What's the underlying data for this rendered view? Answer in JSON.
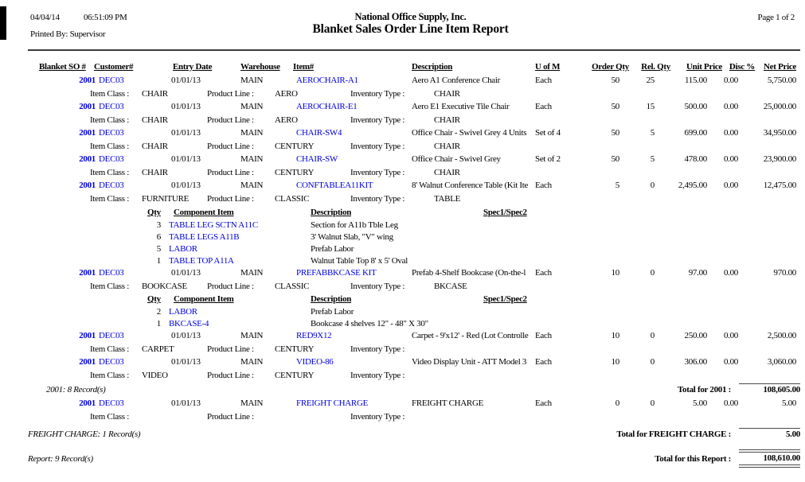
{
  "colors": {
    "link_blue": "#0000dd",
    "text": "#000000"
  },
  "header": {
    "date": "04/04/14",
    "time": "06:51:09 PM",
    "printed_by": "Printed By: Supervisor",
    "company": "National Office Supply, Inc.",
    "title": "Blanket Sales Order Line Item Report",
    "page": "Page 1 of 2"
  },
  "table": {
    "headers": {
      "blanket_so": "Blanket SO #",
      "customer": "Customer#",
      "entry_date": "Entry Date",
      "warehouse": "Warehouse",
      "item": "Item#",
      "description": "Description",
      "uofm": "U of M",
      "order_qty": "Order Qty",
      "rel_qty": "Rel. Qty",
      "unit_price": "Unit Price",
      "disc": "Disc %",
      "net_price": "Net Price"
    },
    "sub_headers": {
      "qty": "Qty",
      "component_item": "Component Item",
      "description": "Description",
      "spec": "Spec1/Spec2"
    },
    "class_labels": {
      "item_class": "Item Class :",
      "product_line": "Product Line :",
      "inventory_type": "Inventory Type :"
    },
    "rows": [
      {
        "type": "item",
        "so": "2001",
        "customer": "DEC03",
        "entry_date": "01/01/13",
        "warehouse": "MAIN",
        "item": "AEROCHAIR-A1",
        "description": "Aero A1 Conference Chair",
        "uofm": "Each",
        "order_qty": "50",
        "rel_qty": "25",
        "unit_price": "115.00",
        "disc": "0.00",
        "net_price": "5,750.00"
      },
      {
        "type": "class",
        "item_class": "CHAIR",
        "product_line": "AERO",
        "inventory_type": "CHAIR"
      },
      {
        "type": "item",
        "so": "2001",
        "customer": "DEC03",
        "entry_date": "01/01/13",
        "warehouse": "MAIN",
        "item": "AEROCHAIR-E1",
        "description": "Aero E1 Executive Tile Chair",
        "uofm": "Each",
        "order_qty": "50",
        "rel_qty": "15",
        "unit_price": "500.00",
        "disc": "0.00",
        "net_price": "25,000.00"
      },
      {
        "type": "class",
        "item_class": "CHAIR",
        "product_line": "AERO",
        "inventory_type": "CHAIR"
      },
      {
        "type": "item",
        "so": "2001",
        "customer": "DEC03",
        "entry_date": "01/01/13",
        "warehouse": "MAIN",
        "item": "CHAIR-SW4",
        "description": "Office Chair - Swivel Grey 4 Units",
        "uofm": "Set of 4",
        "order_qty": "50",
        "rel_qty": "5",
        "unit_price": "699.00",
        "disc": "0.00",
        "net_price": "34,950.00"
      },
      {
        "type": "class",
        "item_class": "CHAIR",
        "product_line": "CENTURY",
        "inventory_type": "CHAIR"
      },
      {
        "type": "item",
        "so": "2001",
        "customer": "DEC03",
        "entry_date": "01/01/13",
        "warehouse": "MAIN",
        "item": "CHAIR-SW",
        "description": "Office Chair - Swivel Grey",
        "uofm": "Set of 2",
        "order_qty": "50",
        "rel_qty": "5",
        "unit_price": "478.00",
        "disc": "0.00",
        "net_price": "23,900.00"
      },
      {
        "type": "class",
        "item_class": "CHAIR",
        "product_line": "CENTURY",
        "inventory_type": "CHAIR"
      },
      {
        "type": "item",
        "so": "2001",
        "customer": "DEC03",
        "entry_date": "01/01/13",
        "warehouse": "MAIN",
        "item": "CONFTABLEA11KIT",
        "description": "8' Walnut Conference Table (Kit Ite",
        "uofm": "Each",
        "order_qty": "5",
        "rel_qty": "0",
        "unit_price": "2,495.00",
        "disc": "0.00",
        "net_price": "12,475.00"
      },
      {
        "type": "class",
        "item_class": "FURNITURE",
        "product_line": "CLASSIC",
        "inventory_type": "TABLE"
      },
      {
        "type": "comp-header"
      },
      {
        "type": "comp",
        "qty": "3",
        "item": "TABLE LEG SCTN A11C",
        "description": "Section for A11b Tble Leg"
      },
      {
        "type": "comp",
        "qty": "6",
        "item": "TABLE LEGS A11B",
        "description": "3' Walnut Slab, \"V\" wing"
      },
      {
        "type": "comp",
        "qty": "5",
        "item": "LABOR",
        "description": "Prefab Labor"
      },
      {
        "type": "comp",
        "qty": "1",
        "item": "TABLE TOP A11A",
        "description": "Walnut Table Top 8' x 5' Oval"
      },
      {
        "type": "item",
        "so": "2001",
        "customer": "DEC03",
        "entry_date": "01/01/13",
        "warehouse": "MAIN",
        "item": "PREFABBKCASE KIT",
        "description": "Prefab 4-Shelf Bookcase (On-the-l",
        "uofm": "Each",
        "order_qty": "10",
        "rel_qty": "0",
        "unit_price": "97.00",
        "disc": "0.00",
        "net_price": "970.00"
      },
      {
        "type": "class",
        "item_class": "BOOKCASE",
        "product_line": "CLASSIC",
        "inventory_type": "BKCASE"
      },
      {
        "type": "comp-header"
      },
      {
        "type": "comp",
        "qty": "2",
        "item": "LABOR",
        "description": "Prefab Labor"
      },
      {
        "type": "comp",
        "qty": "1",
        "item": "BKCASE-4",
        "description": "Bookcase 4 shelves 12\" - 48\" X 30\""
      },
      {
        "type": "item",
        "so": "2001",
        "customer": "DEC03",
        "entry_date": "01/01/13",
        "warehouse": "MAIN",
        "item": "RED9X12",
        "description": "Carpet - 9'x12' - Red (Lot Controlle",
        "uofm": "Each",
        "order_qty": "10",
        "rel_qty": "0",
        "unit_price": "250.00",
        "disc": "0.00",
        "net_price": "2,500.00"
      },
      {
        "type": "class",
        "item_class": "CARPET",
        "product_line": "CENTURY",
        "inventory_type": ""
      },
      {
        "type": "item",
        "so": "2001",
        "customer": "DEC03",
        "entry_date": "01/01/13",
        "warehouse": "MAIN",
        "item": "VIDEO-86",
        "description": "Video Display Unit - ATT Model 3",
        "uofm": "Each",
        "order_qty": "10",
        "rel_qty": "0",
        "unit_price": "306.00",
        "disc": "0.00",
        "net_price": "3,060.00"
      },
      {
        "type": "class",
        "item_class": "VIDEO",
        "product_line": "CENTURY",
        "inventory_type": ""
      },
      {
        "type": "group-total",
        "left": "2001: 8 Record(s)",
        "label": "Total for  2001 :",
        "amount": "108,605.00",
        "style": "single"
      },
      {
        "type": "item",
        "so": "2001",
        "customer": "DEC03",
        "entry_date": "01/01/13",
        "warehouse": "MAIN",
        "item": "FREIGHT CHARGE",
        "description": "FREIGHT CHARGE",
        "uofm": "Each",
        "order_qty": "0",
        "rel_qty": "0",
        "unit_price": "5.00",
        "disc": "0.00",
        "net_price": "5.00"
      },
      {
        "type": "class",
        "item_class": "",
        "product_line": "",
        "inventory_type": ""
      },
      {
        "type": "group-total",
        "left": "FREIGHT CHARGE: 1 Record(s)",
        "label": "Total for FREIGHT CHARGE :",
        "amount": "5.00",
        "style": "single"
      },
      {
        "type": "group-total",
        "left": "Report: 9 Record(s)",
        "label": "Total for this Report :",
        "amount": "108,610.00",
        "style": "double"
      }
    ]
  }
}
